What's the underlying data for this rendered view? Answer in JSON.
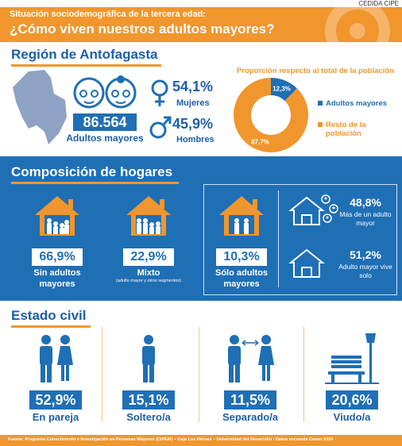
{
  "source_tag": "CEDIDA CIPE",
  "header": {
    "line1": "Situación sociodemográfica de la tercera edad:",
    "line2": "¿Cómo viven nuestros adultos mayores?"
  },
  "region": {
    "title": "Región de Antofagasta",
    "total": "86.564",
    "total_label": "Adultos mayores",
    "women": {
      "value": "54,1%",
      "label": "Mujeres"
    },
    "men": {
      "value": "45,9%",
      "label": "Hombres"
    }
  },
  "proportion": {
    "type": "donut",
    "title": "Proporción respecto al total de la población",
    "categories": [
      "Adultos mayores",
      "Resto de la población"
    ],
    "values": [
      12.3,
      87.7
    ],
    "value_labels": [
      "12,3%",
      "87,7%"
    ],
    "colors": [
      "#1f6fb5",
      "#f0962d"
    ]
  },
  "households": {
    "title": "Composición de hogares",
    "items": [
      {
        "value": "66,9%",
        "label": "Sin adultos mayores"
      },
      {
        "value": "22,9%",
        "label": "Mixto",
        "note": "(adulto mayor y otros segmentos)"
      },
      {
        "value": "10,3%",
        "label": "Sólo adultos mayores"
      }
    ],
    "solo": [
      {
        "value": "48,8%",
        "label": "Más de un adulto mayor"
      },
      {
        "value": "51,2%",
        "label": "Adulto mayor vive solo"
      }
    ]
  },
  "civil": {
    "title": "Estado civil",
    "items": [
      {
        "value": "52,9%",
        "label": "En pareja"
      },
      {
        "value": "15,1%",
        "label": "Soltero/a"
      },
      {
        "value": "11,5%",
        "label": "Separado/a"
      },
      {
        "value": "20,6%",
        "label": "Viudo/a"
      }
    ]
  },
  "footer": "Fuente: Programa Conocimiento e Investigación en Personas Mayores (CIPEM) – Caja Los Héroes – Universidad del Desarrollo / Datos encuesta Casen 2020"
}
